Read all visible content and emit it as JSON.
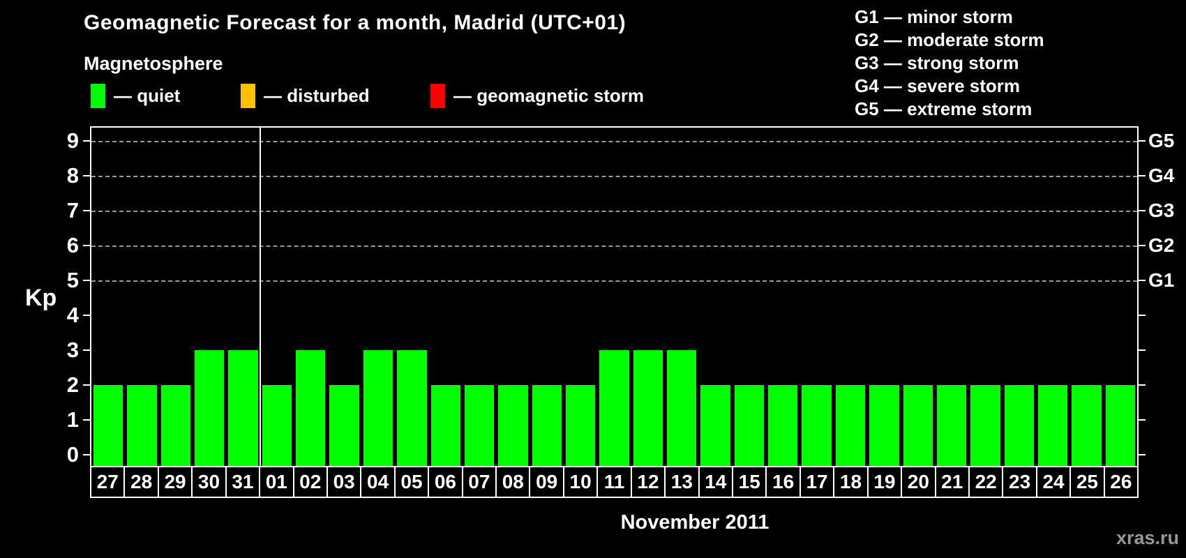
{
  "title": "Geomagnetic Forecast for a month, Madrid (UTC+01)",
  "subtitle": "Magnetosphere",
  "legend": {
    "items": [
      {
        "name": "quiet",
        "label": "— quiet",
        "color": "#00ff00",
        "x": 130
      },
      {
        "name": "disturbed",
        "label": "— disturbed",
        "color": "#ffc000",
        "x": 345
      },
      {
        "name": "geomagnetic-storm",
        "label": "— geomagnetic storm",
        "color": "#ff0000",
        "x": 617
      }
    ]
  },
  "storm_legend": [
    "G1 — minor storm",
    "G2 — moderate storm",
    "G3 — strong storm",
    "G4 — severe storm",
    "G5 — extreme storm"
  ],
  "chart_data": {
    "type": "bar",
    "title": "Geomagnetic Forecast for a month, Madrid (UTC+01)",
    "categories": [
      "27",
      "28",
      "29",
      "30",
      "31",
      "01",
      "02",
      "03",
      "04",
      "05",
      "06",
      "07",
      "08",
      "09",
      "10",
      "11",
      "12",
      "13",
      "14",
      "15",
      "16",
      "17",
      "18",
      "19",
      "20",
      "21",
      "22",
      "23",
      "24",
      "25",
      "26"
    ],
    "values": [
      2,
      2,
      2,
      3,
      3,
      2,
      3,
      2,
      3,
      3,
      2,
      2,
      2,
      2,
      2,
      3,
      3,
      3,
      2,
      2,
      2,
      2,
      2,
      2,
      2,
      2,
      2,
      2,
      2,
      2,
      2
    ],
    "xlabel": "November 2011",
    "ylabel": "Kp",
    "ylim": [
      0,
      9
    ],
    "yticks": [
      0,
      1,
      2,
      3,
      4,
      5,
      6,
      7,
      8,
      9
    ],
    "right_axis_ticks": [
      {
        "label": "G1",
        "kp": 5
      },
      {
        "label": "G2",
        "kp": 6
      },
      {
        "label": "G3",
        "kp": 7
      },
      {
        "label": "G4",
        "kp": 8
      },
      {
        "label": "G5",
        "kp": 9
      }
    ],
    "gridlines_at_kp": [
      5,
      6,
      7,
      8,
      9
    ],
    "grid": "dashed",
    "month_separator_after_index": 4,
    "bar_colors": {
      "quiet": "#00ff00",
      "disturbed": "#ffc000",
      "storm": "#ff0000"
    },
    "legend_position": "top-left"
  },
  "caption": "November 2011",
  "watermark": "xras.ru"
}
